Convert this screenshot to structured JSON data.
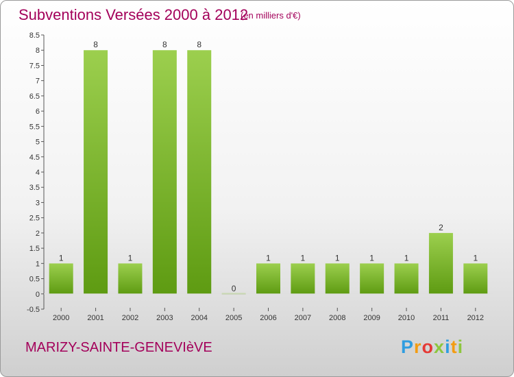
{
  "header": {
    "title": "Subventions Versées 2000 à 2012",
    "subtitle": "(en milliers d'€)"
  },
  "footer": {
    "commune": "MARIZY-SAINTE-GENEVIèVE",
    "logo_letters": [
      "P",
      "r",
      "o",
      "x",
      "i",
      "t",
      "i"
    ],
    "logo_colors": [
      "#2f9de0",
      "#f39c12",
      "#e53935",
      "#8dc63f",
      "#2f9de0",
      "#f39c12",
      "#8dc63f"
    ]
  },
  "chart_data": {
    "type": "bar",
    "title": "Subventions Versées 2000 à 2012",
    "categories": [
      "2000",
      "2001",
      "2002",
      "2003",
      "2004",
      "2005",
      "2006",
      "2007",
      "2008",
      "2009",
      "2010",
      "2011",
      "2012"
    ],
    "values": [
      1,
      8,
      1,
      8,
      8,
      0,
      1,
      1,
      1,
      1,
      1,
      2,
      1
    ],
    "ylim": [
      -0.5,
      8.5
    ],
    "yticks": [
      "-0.5",
      "0",
      "0.5",
      "1",
      "1.5",
      "2",
      "2.5",
      "3",
      "3.5",
      "4",
      "4.5",
      "5",
      "5.5",
      "6",
      "6.5",
      "7",
      "7.5",
      "8",
      "8.5"
    ],
    "grid": false,
    "colors": {
      "bar_top": "#9ccf4e",
      "bar_bottom": "#5e9b12",
      "axis": "#555555",
      "tick_text": "#333333"
    }
  }
}
